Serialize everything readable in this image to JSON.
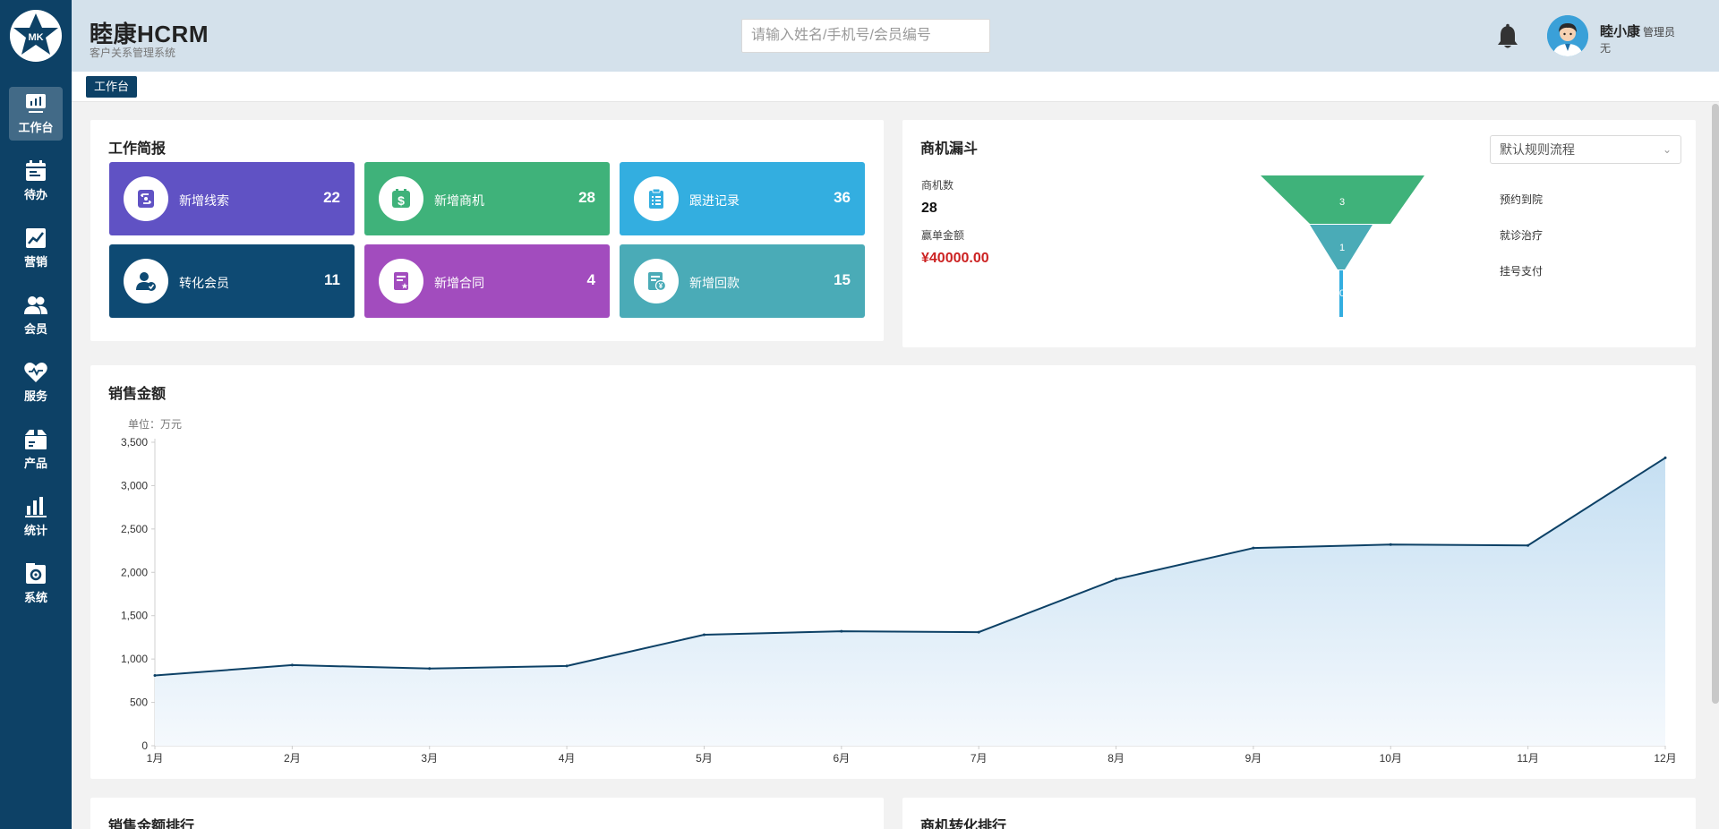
{
  "brand": {
    "logo_text": "MK",
    "title": "睦康HCRM",
    "subtitle": "客户关系管理系统"
  },
  "search": {
    "placeholder": "请输入姓名/手机号/会员编号"
  },
  "user": {
    "name": "睦小康",
    "role": "管理员",
    "org": "无"
  },
  "sidebar": {
    "items": [
      {
        "label": "工作台",
        "icon": "dashboard-icon"
      },
      {
        "label": "待办",
        "icon": "calendar-icon"
      },
      {
        "label": "营销",
        "icon": "trend-icon"
      },
      {
        "label": "会员",
        "icon": "members-icon"
      },
      {
        "label": "服务",
        "icon": "heart-icon"
      },
      {
        "label": "产品",
        "icon": "box-icon"
      },
      {
        "label": "统计",
        "icon": "bar-chart-icon"
      },
      {
        "label": "系统",
        "icon": "settings-icon"
      }
    ]
  },
  "tabs": [
    {
      "label": "工作台"
    }
  ],
  "brief": {
    "title": "工作简报",
    "tiles": [
      {
        "label": "新增线索",
        "value": "22",
        "color": "#6052c4",
        "icon": "clue-icon"
      },
      {
        "label": "新增商机",
        "value": "28",
        "color": "#3fb27a",
        "icon": "dollar-icon"
      },
      {
        "label": "跟进记录",
        "value": "36",
        "color": "#33aee0",
        "icon": "clipboard-icon"
      },
      {
        "label": "转化会员",
        "value": "11",
        "color": "#0e4a73",
        "icon": "user-check-icon"
      },
      {
        "label": "新增合同",
        "value": "4",
        "color": "#a24cbe",
        "icon": "contract-icon"
      },
      {
        "label": "新增回款",
        "value": "15",
        "color": "#4aabb7",
        "icon": "payment-icon"
      }
    ]
  },
  "funnel": {
    "title": "商机漏斗",
    "count_label": "商机数",
    "count_value": "28",
    "amount_label": "赢单金额",
    "amount_value": "¥40000.00",
    "select_value": "默认规则流程",
    "stages": [
      {
        "label": "预约到院",
        "value": 3,
        "color": "#3fb27a"
      },
      {
        "label": "就诊治疗",
        "value": 1,
        "color": "#4aabb7"
      },
      {
        "label": "挂号支付",
        "value": 0,
        "color": "#33aee0"
      }
    ]
  },
  "sales": {
    "title": "销售金额",
    "unit_label": "单位：万元"
  },
  "bottom": {
    "left_title": "销售金额排行",
    "right_title": "商机转化排行"
  },
  "colors": {
    "line": "#0d4166",
    "area_top": "#c5dff2",
    "area_bottom": "#f5f9fd",
    "amount": "#cc2222"
  },
  "chart_data": {
    "type": "area",
    "title": "销售金额",
    "ylabel": "单位：万元",
    "categories": [
      "1月",
      "2月",
      "3月",
      "4月",
      "5月",
      "6月",
      "7月",
      "8月",
      "9月",
      "10月",
      "11月",
      "12月"
    ],
    "values": [
      810,
      930,
      890,
      920,
      1280,
      1320,
      1310,
      1920,
      2280,
      2320,
      2310,
      3320
    ],
    "ylim": [
      0,
      3500
    ],
    "yticks": [
      0,
      500,
      1000,
      1500,
      2000,
      2500,
      3000,
      3500
    ],
    "ytick_labels": [
      "0",
      "500",
      "1,000",
      "1,500",
      "2,000",
      "2,500",
      "3,000",
      "3,500"
    ],
    "grid": false
  }
}
